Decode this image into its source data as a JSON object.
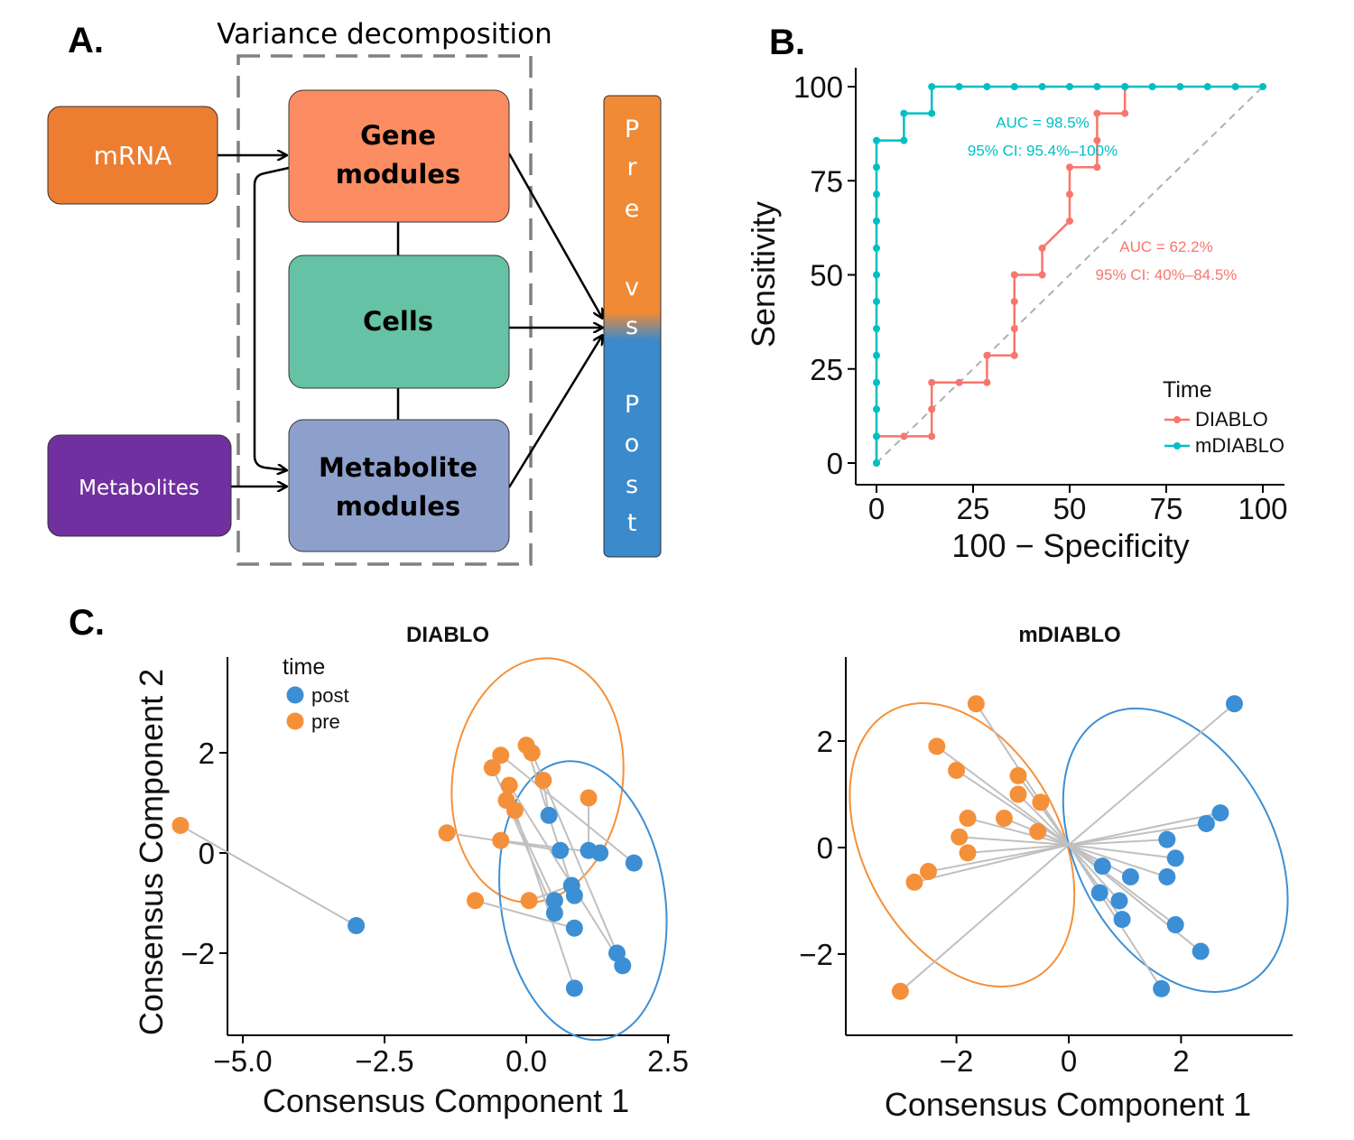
{
  "colors": {
    "mrna": "#ed7d31",
    "gene": "#fc8d62",
    "cells": "#66c2a5",
    "metab_mod": "#8da0cb",
    "metabolites": "#7030a0",
    "pre": "#f5903a",
    "post": "#3c8fd4",
    "diablo": "#f8766d",
    "mdiablo": "#00bfc4"
  },
  "panel_a": {
    "label": "A.",
    "title": "Variance decomposition",
    "mrna": "mRNA",
    "metabolites": "Metabolites",
    "gene_line1": "Gene",
    "gene_line2": "modules",
    "cells": "Cells",
    "metab_line1": "Metabolite",
    "metab_line2": "modules",
    "outcome_letters": [
      "P",
      "r",
      "e",
      "v",
      "s",
      "P",
      "o",
      "s",
      "t"
    ]
  },
  "panel_b_label": "B.",
  "panel_c_label": "C.",
  "chart_data": [
    {
      "id": "roc",
      "type": "line",
      "xlabel": "100 − Specificity",
      "ylabel": "Sensitivity",
      "xlim": [
        0,
        100
      ],
      "ylim": [
        0,
        100
      ],
      "xticks": [
        0,
        25,
        50,
        75,
        100
      ],
      "yticks": [
        0,
        25,
        50,
        75,
        100
      ],
      "legend_title": "Time",
      "series": [
        {
          "name": "DIABLO",
          "x": [
            0,
            0,
            7.1,
            14.3,
            14.3,
            14.3,
            21.4,
            28.6,
            28.6,
            35.7,
            35.7,
            35.7,
            35.7,
            42.9,
            42.9,
            50,
            50,
            50,
            57.1,
            57.1,
            57.1,
            64.3,
            64.3
          ],
          "y": [
            0,
            7.1,
            7.1,
            7.1,
            14.3,
            21.4,
            21.4,
            21.4,
            28.6,
            28.6,
            35.7,
            42.9,
            50,
            50,
            57.1,
            64.3,
            71.4,
            78.6,
            78.6,
            85.7,
            92.9,
            92.9,
            100
          ]
        },
        {
          "name": "mDIABLO",
          "x": [
            0,
            0,
            0,
            0,
            0,
            0,
            0,
            0,
            0,
            0,
            0,
            0,
            0,
            7.1,
            7.1,
            14.3,
            14.3,
            21.4,
            28.6,
            35.7,
            42.9,
            50,
            57.1,
            64.3,
            71.4,
            78.6,
            85.7,
            92.9,
            100
          ],
          "y": [
            0,
            7.1,
            14.3,
            21.4,
            28.6,
            35.7,
            42.9,
            50,
            57.1,
            64.3,
            71.4,
            78.6,
            85.7,
            85.7,
            92.9,
            92.9,
            100,
            100,
            100,
            100,
            100,
            100,
            100,
            100,
            100,
            100,
            100,
            100,
            100
          ]
        }
      ],
      "annotations": [
        {
          "series": "mDIABLO",
          "line1": "AUC = 98.5%",
          "line2": "95% CI: 95.4%–100%",
          "x": 43,
          "y": 85
        },
        {
          "series": "DIABLO",
          "line1": "AUC = 62.2%",
          "line2": "95% CI: 40%–84.5%",
          "x": 75,
          "y": 52
        }
      ]
    },
    {
      "id": "diablo",
      "type": "scatter",
      "title": "DIABLO",
      "xlabel": "Consensus Component 1",
      "ylabel": "Consensus Component 2",
      "xlim": [
        -6.6,
        2.85
      ],
      "ylim": [
        -3.6,
        3.9
      ],
      "xticks": [
        -5.0,
        -2.5,
        0.0,
        2.5
      ],
      "xtick_labels": [
        "−5.0",
        "−2.5",
        "0.0",
        "2.5"
      ],
      "yticks": [
        -2,
        0,
        2
      ],
      "ytick_labels": [
        "−2",
        "0",
        "2"
      ],
      "legend_title": "time",
      "legend": [
        "post",
        "pre"
      ],
      "pre": [
        [
          -6.1,
          0.55
        ],
        [
          -0.45,
          1.95
        ],
        [
          0.0,
          2.15
        ],
        [
          0.1,
          2.0
        ],
        [
          -0.6,
          1.7
        ],
        [
          -0.3,
          1.35
        ],
        [
          -0.35,
          1.05
        ],
        [
          -0.2,
          0.85
        ],
        [
          0.3,
          1.45
        ],
        [
          1.1,
          1.1
        ],
        [
          -1.4,
          0.4
        ],
        [
          -0.45,
          0.25
        ],
        [
          -0.9,
          -0.95
        ],
        [
          0.05,
          -0.95
        ]
      ],
      "post": [
        [
          -3.0,
          -1.45
        ],
        [
          0.4,
          0.75
        ],
        [
          0.6,
          0.05
        ],
        [
          1.1,
          0.05
        ],
        [
          1.3,
          0.0
        ],
        [
          1.9,
          -0.2
        ],
        [
          0.8,
          -0.65
        ],
        [
          0.85,
          -0.85
        ],
        [
          0.5,
          -0.95
        ],
        [
          0.5,
          -1.2
        ],
        [
          0.85,
          -1.5
        ],
        [
          1.6,
          -2.0
        ],
        [
          1.7,
          -2.25
        ],
        [
          0.85,
          -2.7
        ]
      ],
      "pairs": [
        [
          0,
          0
        ],
        [
          1,
          5
        ],
        [
          2,
          7
        ],
        [
          3,
          11
        ],
        [
          4,
          8
        ],
        [
          5,
          12
        ],
        [
          6,
          9
        ],
        [
          7,
          13
        ],
        [
          8,
          1
        ],
        [
          9,
          3
        ],
        [
          10,
          2
        ],
        [
          11,
          4
        ],
        [
          12,
          10
        ],
        [
          13,
          6
        ]
      ],
      "ellipse_pre": {
        "cx": 0.2,
        "cy": 1.45,
        "rx": 1.5,
        "ry": 2.45,
        "angle_deg": 8
      },
      "ellipse_post": {
        "cx": 1.0,
        "cy": -0.95,
        "rx": 1.45,
        "ry": 2.8,
        "angle_deg": -8
      }
    },
    {
      "id": "mdiablo",
      "type": "scatter",
      "title": "mDIABLO",
      "xlabel": "Consensus Component 1",
      "xlim": [
        -3.95,
        3.95
      ],
      "ylim": [
        -3.5,
        3.7
      ],
      "xticks": [
        -2,
        0,
        2
      ],
      "xtick_labels": [
        "−2",
        "0",
        "2"
      ],
      "yticks": [
        -2,
        0,
        2
      ],
      "ytick_labels": [
        "−2",
        "0",
        "2"
      ],
      "pre": [
        [
          -1.65,
          2.7
        ],
        [
          -2.35,
          1.9
        ],
        [
          -2.0,
          1.45
        ],
        [
          -0.9,
          1.35
        ],
        [
          -0.9,
          1.0
        ],
        [
          -0.5,
          0.85
        ],
        [
          -1.8,
          0.55
        ],
        [
          -1.15,
          0.55
        ],
        [
          -0.55,
          0.3
        ],
        [
          -1.95,
          0.2
        ],
        [
          -1.8,
          -0.1
        ],
        [
          -2.5,
          -0.45
        ],
        [
          -2.75,
          -0.65
        ],
        [
          -3.0,
          -2.7
        ]
      ],
      "post": [
        [
          2.95,
          2.7
        ],
        [
          2.7,
          0.65
        ],
        [
          2.45,
          0.45
        ],
        [
          1.75,
          0.15
        ],
        [
          1.9,
          -0.2
        ],
        [
          0.6,
          -0.35
        ],
        [
          1.1,
          -0.55
        ],
        [
          1.75,
          -0.55
        ],
        [
          0.55,
          -0.85
        ],
        [
          0.9,
          -1.0
        ],
        [
          0.95,
          -1.35
        ],
        [
          1.9,
          -1.45
        ],
        [
          2.35,
          -1.95
        ],
        [
          1.65,
          -2.65
        ]
      ],
      "center": [
        0.0,
        0.05
      ],
      "ellipse_pre": {
        "cx": -1.9,
        "cy": 0.05,
        "rx": 1.75,
        "ry": 2.85,
        "angle_deg": -28
      },
      "ellipse_post": {
        "cx": 1.9,
        "cy": -0.05,
        "rx": 1.75,
        "ry": 2.85,
        "angle_deg": -28
      }
    }
  ]
}
